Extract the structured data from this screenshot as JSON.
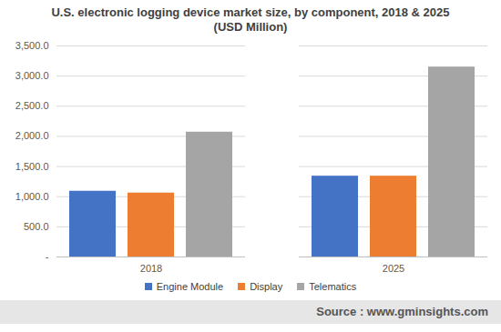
{
  "chart_data": {
    "type": "bar",
    "title": "U.S. electronic logging device market size, by component, 2018 & 2025",
    "subtitle": "(USD Million)",
    "categories": [
      "2018",
      "2025"
    ],
    "series": [
      {
        "name": "Engine Module",
        "color": "#4472c4",
        "values": [
          1090,
          1340
        ]
      },
      {
        "name": "Display",
        "color": "#ed7d31",
        "values": [
          1060,
          1340
        ]
      },
      {
        "name": "Telematics",
        "color": "#a5a5a5",
        "values": [
          2070,
          3150
        ]
      }
    ],
    "ylim": [
      0,
      3500
    ],
    "yticks": [
      {
        "value": 0,
        "label": "-"
      },
      {
        "value": 500,
        "label": "500.0"
      },
      {
        "value": 1000,
        "label": "1,000.0"
      },
      {
        "value": 1500,
        "label": "1,500.0"
      },
      {
        "value": 2000,
        "label": "2,000.0"
      },
      {
        "value": 2500,
        "label": "2,500.0"
      },
      {
        "value": 3000,
        "label": "3,000.0"
      },
      {
        "value": 3500,
        "label": "3,500.0"
      }
    ],
    "grid": true,
    "legend": "bottom",
    "caption": "Source : www.gminsights.com"
  }
}
